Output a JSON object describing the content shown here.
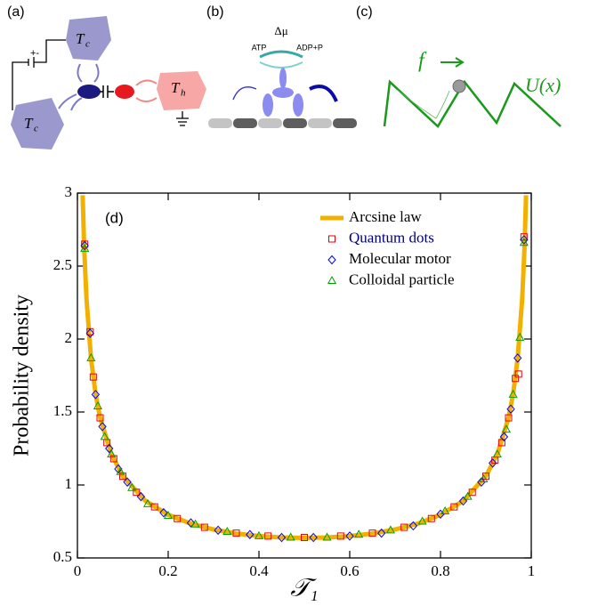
{
  "panels": [
    {
      "label": "(a)",
      "texts": [
        "T",
        "c",
        "T",
        "c",
        "T",
        "h",
        "+-"
      ]
    },
    {
      "label": "(b)",
      "texts": [
        "Δμ",
        "ATP",
        "ADP+P"
      ]
    },
    {
      "label": "(c)",
      "texts": [
        "f",
        "U(x)"
      ]
    }
  ],
  "chart_data": {
    "type": "line",
    "panel_label": "(d)",
    "x_label": "𝒯₁",
    "y_label": "Probability density",
    "xlim": [
      0,
      1
    ],
    "ylim": [
      0.5,
      3
    ],
    "xticks": [
      0,
      0.2,
      0.4,
      0.6,
      0.8,
      1
    ],
    "yticks": [
      0.5,
      1,
      1.5,
      2,
      2.5,
      3
    ],
    "legend": "upper right",
    "series": [
      {
        "name": "Arcsine law",
        "color": "#f2b100",
        "style": "line",
        "x": [
          0.0115,
          0.015,
          0.02,
          0.03,
          0.04,
          0.05,
          0.075,
          0.1,
          0.15,
          0.2,
          0.25,
          0.3,
          0.35,
          0.4,
          0.45,
          0.5,
          0.55,
          0.6,
          0.65,
          0.7,
          0.75,
          0.8,
          0.85,
          0.9,
          0.925,
          0.95,
          0.96,
          0.97,
          0.98,
          0.985,
          0.9885
        ],
        "values": [
          2.985,
          2.619,
          2.274,
          1.866,
          1.624,
          1.461,
          1.209,
          1.061,
          0.891,
          0.796,
          0.735,
          0.695,
          0.667,
          0.65,
          0.64,
          0.637,
          0.64,
          0.65,
          0.667,
          0.695,
          0.735,
          0.796,
          0.891,
          1.061,
          1.209,
          1.461,
          1.624,
          1.866,
          2.274,
          2.619,
          2.985
        ]
      },
      {
        "name": "Quantum dots",
        "color": "#e8000b",
        "text_color": "#00007f",
        "style": "square",
        "x": [
          0.016,
          0.028,
          0.035,
          0.05,
          0.065,
          0.08,
          0.1,
          0.13,
          0.17,
          0.22,
          0.28,
          0.35,
          0.42,
          0.5,
          0.58,
          0.65,
          0.72,
          0.78,
          0.83,
          0.87,
          0.9,
          0.92,
          0.935,
          0.95,
          0.965,
          0.972,
          0.984
        ],
        "values": [
          2.65,
          2.05,
          1.74,
          1.46,
          1.29,
          1.18,
          1.06,
          0.95,
          0.85,
          0.77,
          0.71,
          0.67,
          0.65,
          0.64,
          0.65,
          0.67,
          0.71,
          0.77,
          0.85,
          0.95,
          1.06,
          1.17,
          1.29,
          1.46,
          1.73,
          1.76,
          2.7
        ]
      },
      {
        "name": "Molecular motor",
        "color": "#0000ff",
        "style": "diamond",
        "x": [
          0.016,
          0.028,
          0.04,
          0.055,
          0.07,
          0.09,
          0.11,
          0.14,
          0.19,
          0.25,
          0.31,
          0.38,
          0.45,
          0.52,
          0.6,
          0.67,
          0.74,
          0.8,
          0.85,
          0.89,
          0.915,
          0.94,
          0.955,
          0.97,
          0.984
        ],
        "values": [
          2.64,
          2.04,
          1.62,
          1.4,
          1.25,
          1.11,
          1.02,
          0.92,
          0.81,
          0.74,
          0.69,
          0.66,
          0.64,
          0.64,
          0.65,
          0.67,
          0.72,
          0.8,
          0.89,
          1.02,
          1.15,
          1.33,
          1.52,
          1.87,
          2.68
        ]
      },
      {
        "name": "Colloidal particle",
        "color": "#00a000",
        "style": "triangle",
        "x": [
          0.016,
          0.03,
          0.045,
          0.06,
          0.075,
          0.095,
          0.12,
          0.155,
          0.2,
          0.26,
          0.33,
          0.4,
          0.47,
          0.55,
          0.62,
          0.69,
          0.76,
          0.81,
          0.86,
          0.895,
          0.925,
          0.945,
          0.96,
          0.975,
          0.984
        ],
        "values": [
          2.62,
          1.87,
          1.54,
          1.33,
          1.21,
          1.09,
          0.98,
          0.87,
          0.79,
          0.73,
          0.68,
          0.65,
          0.64,
          0.64,
          0.66,
          0.69,
          0.75,
          0.82,
          0.92,
          1.04,
          1.21,
          1.38,
          1.62,
          2.01,
          2.66
        ]
      }
    ]
  }
}
